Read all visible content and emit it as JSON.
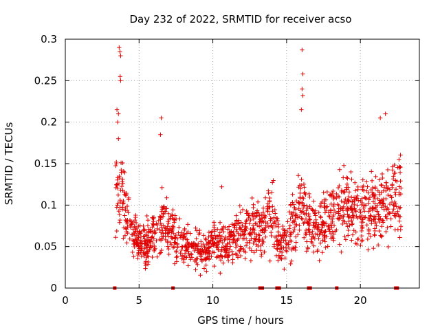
{
  "chart_data": {
    "type": "scatter",
    "title": "Day 232 of 2022, SRMTID for receiver acso",
    "xlabel": "GPS time / hours",
    "ylabel": "SRMTID / TECUs",
    "xlim": [
      0,
      24
    ],
    "ylim": [
      0,
      0.3
    ],
    "xticks": [
      0,
      5,
      10,
      15,
      20
    ],
    "yticks": [
      0,
      0.05,
      0.1,
      0.15,
      0.2,
      0.25,
      0.3
    ],
    "grid": true,
    "marker": "plus",
    "series_color": "#e00000",
    "outliers": [
      {
        "x": 3.65,
        "y": 0.29
      },
      {
        "x": 3.7,
        "y": 0.285
      },
      {
        "x": 3.75,
        "y": 0.28
      },
      {
        "x": 3.72,
        "y": 0.255
      },
      {
        "x": 3.75,
        "y": 0.25
      },
      {
        "x": 3.5,
        "y": 0.215
      },
      {
        "x": 3.6,
        "y": 0.21
      },
      {
        "x": 3.55,
        "y": 0.2
      },
      {
        "x": 3.6,
        "y": 0.18
      },
      {
        "x": 6.5,
        "y": 0.205
      },
      {
        "x": 6.45,
        "y": 0.185
      },
      {
        "x": 16.05,
        "y": 0.287
      },
      {
        "x": 16.1,
        "y": 0.258
      },
      {
        "x": 16.05,
        "y": 0.24
      },
      {
        "x": 16.1,
        "y": 0.232
      },
      {
        "x": 16.0,
        "y": 0.215
      },
      {
        "x": 21.7,
        "y": 0.21
      },
      {
        "x": 21.35,
        "y": 0.205
      },
      {
        "x": 10.6,
        "y": 0.122
      },
      {
        "x": 10.5,
        "y": 0.018
      }
    ],
    "density_profile": {
      "description": "Scattered SRMTID values approximately from 3.5 to 22.8 hours",
      "x_start": 3.4,
      "x_end": 22.8,
      "center_points": [
        {
          "x": 3.5,
          "y": 0.11
        },
        {
          "x": 4.0,
          "y": 0.1
        },
        {
          "x": 4.5,
          "y": 0.07
        },
        {
          "x": 5.0,
          "y": 0.055
        },
        {
          "x": 5.5,
          "y": 0.05
        },
        {
          "x": 6.0,
          "y": 0.065
        },
        {
          "x": 6.5,
          "y": 0.08
        },
        {
          "x": 7.0,
          "y": 0.07
        },
        {
          "x": 7.5,
          "y": 0.065
        },
        {
          "x": 8.0,
          "y": 0.055
        },
        {
          "x": 8.5,
          "y": 0.05
        },
        {
          "x": 9.0,
          "y": 0.045
        },
        {
          "x": 9.5,
          "y": 0.04
        },
        {
          "x": 10.0,
          "y": 0.055
        },
        {
          "x": 10.5,
          "y": 0.055
        },
        {
          "x": 11.0,
          "y": 0.05
        },
        {
          "x": 11.5,
          "y": 0.06
        },
        {
          "x": 12.0,
          "y": 0.065
        },
        {
          "x": 12.5,
          "y": 0.07
        },
        {
          "x": 13.0,
          "y": 0.075
        },
        {
          "x": 13.5,
          "y": 0.08
        },
        {
          "x": 14.0,
          "y": 0.09
        },
        {
          "x": 14.5,
          "y": 0.055
        },
        {
          "x": 15.0,
          "y": 0.06
        },
        {
          "x": 15.5,
          "y": 0.075
        },
        {
          "x": 16.0,
          "y": 0.1
        },
        {
          "x": 16.5,
          "y": 0.08
        },
        {
          "x": 17.0,
          "y": 0.07
        },
        {
          "x": 17.5,
          "y": 0.08
        },
        {
          "x": 18.0,
          "y": 0.085
        },
        {
          "x": 18.5,
          "y": 0.09
        },
        {
          "x": 19.0,
          "y": 0.1
        },
        {
          "x": 19.5,
          "y": 0.095
        },
        {
          "x": 20.0,
          "y": 0.09
        },
        {
          "x": 20.5,
          "y": 0.1
        },
        {
          "x": 21.0,
          "y": 0.095
        },
        {
          "x": 21.5,
          "y": 0.1
        },
        {
          "x": 22.0,
          "y": 0.1
        },
        {
          "x": 22.5,
          "y": 0.11
        },
        {
          "x": 22.8,
          "y": 0.11
        }
      ]
    },
    "gap_markers_x": [
      3.35,
      7.3,
      13.2,
      13.35,
      14.35,
      14.5,
      16.5,
      16.6,
      18.4,
      22.4,
      22.5
    ]
  }
}
